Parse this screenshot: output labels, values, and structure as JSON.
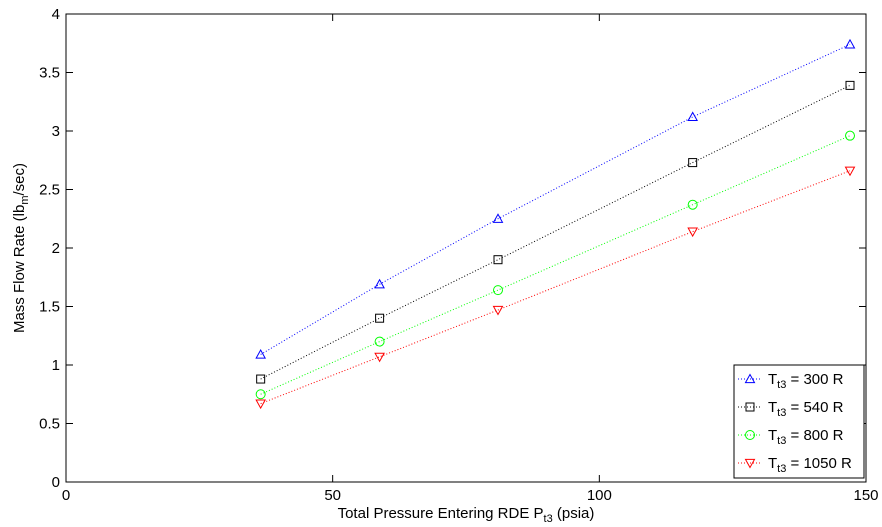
{
  "chart_data": {
    "type": "line",
    "title": "",
    "xlabel": {
      "main": "Total Pressure Entering RDE P",
      "sub": "t3",
      "unit": " (psia)"
    },
    "ylabel": {
      "main": "Mass Flow Rate (lb",
      "sub": "m",
      "unit": "/sec)"
    },
    "xlim": [
      0,
      150
    ],
    "ylim": [
      0,
      4
    ],
    "xticks": [
      0,
      50,
      100,
      150
    ],
    "yticks": [
      0,
      0.5,
      1,
      1.5,
      2,
      2.5,
      3,
      3.5,
      4
    ],
    "xtick_labels": [
      "0",
      "50",
      "100",
      "150"
    ],
    "ytick_labels": [
      "0",
      "0.5",
      "1",
      "1.5",
      "2",
      "2.5",
      "3",
      "3.5",
      "4"
    ],
    "grid": false,
    "legend_position": "bottom-right",
    "x": [
      36.5,
      58.8,
      81,
      117.5,
      147
    ],
    "series": [
      {
        "name_main": "T",
        "name_sub": "t3",
        "name_rest": " = 300 R",
        "marker": "triangle-up",
        "color": "#0000ff",
        "values": [
          1.09,
          1.69,
          2.25,
          3.12,
          3.74
        ]
      },
      {
        "name_main": "T",
        "name_sub": "t3",
        "name_rest": " = 540 R",
        "marker": "square",
        "color": "#000000",
        "values": [
          0.88,
          1.4,
          1.9,
          2.73,
          3.39
        ]
      },
      {
        "name_main": "T",
        "name_sub": "t3",
        "name_rest": " = 800 R",
        "marker": "circle",
        "color": "#00ff00",
        "values": [
          0.75,
          1.2,
          1.64,
          2.37,
          2.96
        ]
      },
      {
        "name_main": "T",
        "name_sub": "t3",
        "name_rest": " = 1050 R",
        "marker": "triangle-down",
        "color": "#ff0000",
        "values": [
          0.67,
          1.07,
          1.47,
          2.14,
          2.66
        ]
      }
    ]
  }
}
